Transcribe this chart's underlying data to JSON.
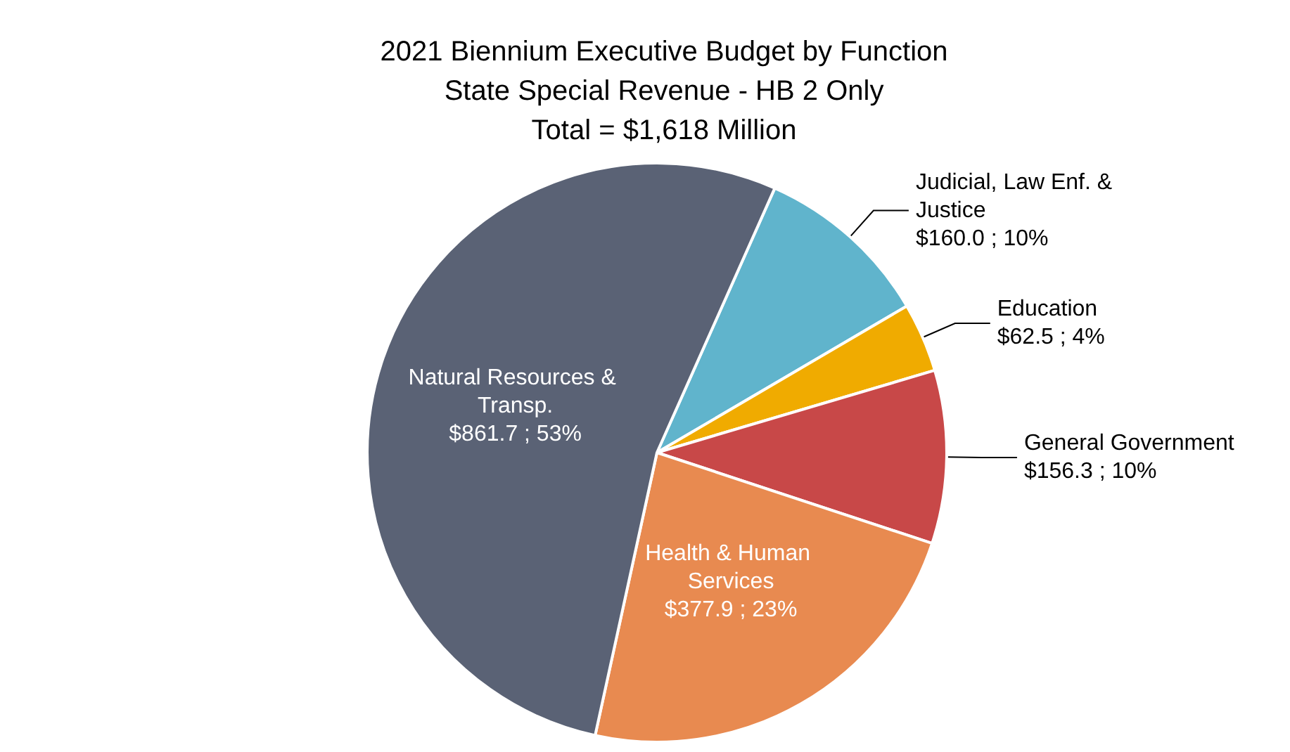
{
  "chart_data": {
    "type": "pie",
    "title": "2021 Biennium Executive Budget by Function",
    "subtitle": "State Special Revenue - HB 2 Only",
    "annotations": [
      "Total = $1,618 Million"
    ],
    "categories": [
      "Judicial, Law Enf. & Justice",
      "Education",
      "General Government",
      "Health & Human Services",
      "Natural Resources & Transp."
    ],
    "values": [
      160.0,
      62.5,
      156.3,
      377.9,
      861.7
    ],
    "value_labels": [
      "$160.0 ; 10%",
      "$62.5 ; 4%",
      "$156.3 ; 10%",
      "$377.9 ; 23%",
      "$861.7 ; 53%"
    ],
    "colors": [
      "#60b4cc",
      "#f0ab00",
      "#c84848",
      "#e88a50",
      "#5a6275"
    ],
    "legend": false
  }
}
